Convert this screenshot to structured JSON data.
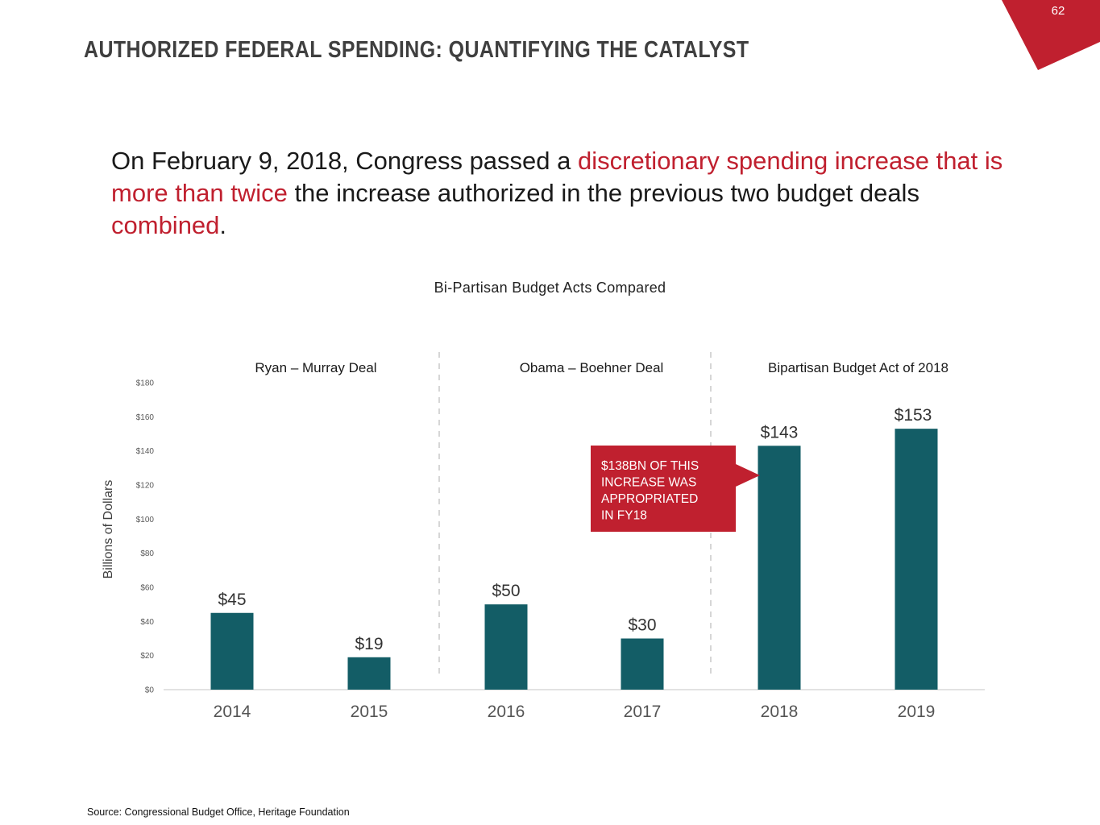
{
  "slide": {
    "page_number": "62",
    "title": "AUTHORIZED FEDERAL SPENDING: QUANTIFYING THE CATALYST",
    "headline": [
      {
        "text": "On February 9, 2018, Congress passed a ",
        "highlight": false
      },
      {
        "text": "discretionary spending increase that is more than twice",
        "highlight": true
      },
      {
        "text": " the increase authorized in the previous two budget deals ",
        "highlight": false
      },
      {
        "text": "combined",
        "highlight": true
      },
      {
        "text": ".",
        "highlight": false
      }
    ],
    "source": "Source: Congressional Budget Office, Heritage Foundation",
    "colors": {
      "accent": "#c0202f",
      "bar": "#135d66",
      "title": "#3f3f3f"
    }
  },
  "chart_data": {
    "type": "bar",
    "title": "Bi-Partisan Budget Acts Compared",
    "xlabel": "",
    "ylabel": "Billions of Dollars",
    "ylim": [
      0,
      180
    ],
    "yticks": [
      0,
      20,
      40,
      60,
      80,
      100,
      120,
      140,
      160,
      180
    ],
    "ytick_labels": [
      "$0",
      "$20",
      "$40",
      "$60",
      "$80",
      "$100",
      "$120",
      "$140",
      "$160",
      "$180"
    ],
    "categories": [
      "2014",
      "2015",
      "2016",
      "2017",
      "2018",
      "2019"
    ],
    "values": [
      45,
      19,
      50,
      30,
      143,
      153
    ],
    "data_labels": [
      "$45",
      "$19",
      "$50",
      "$30",
      "$143",
      "$153"
    ],
    "grid": false,
    "groups": [
      {
        "label": "Ryan – Murray Deal",
        "categories": [
          "2014",
          "2015"
        ]
      },
      {
        "label": "Obama – Boehner Deal",
        "categories": [
          "2016",
          "2017"
        ]
      },
      {
        "label": "Bipartisan Budget Act of 2018",
        "categories": [
          "2018",
          "2019"
        ]
      }
    ],
    "annotation": {
      "lines": [
        "$138BN OF THIS",
        "INCREASE WAS",
        "APPROPRIATED",
        "IN FY18"
      ],
      "points_to": "2018"
    }
  }
}
